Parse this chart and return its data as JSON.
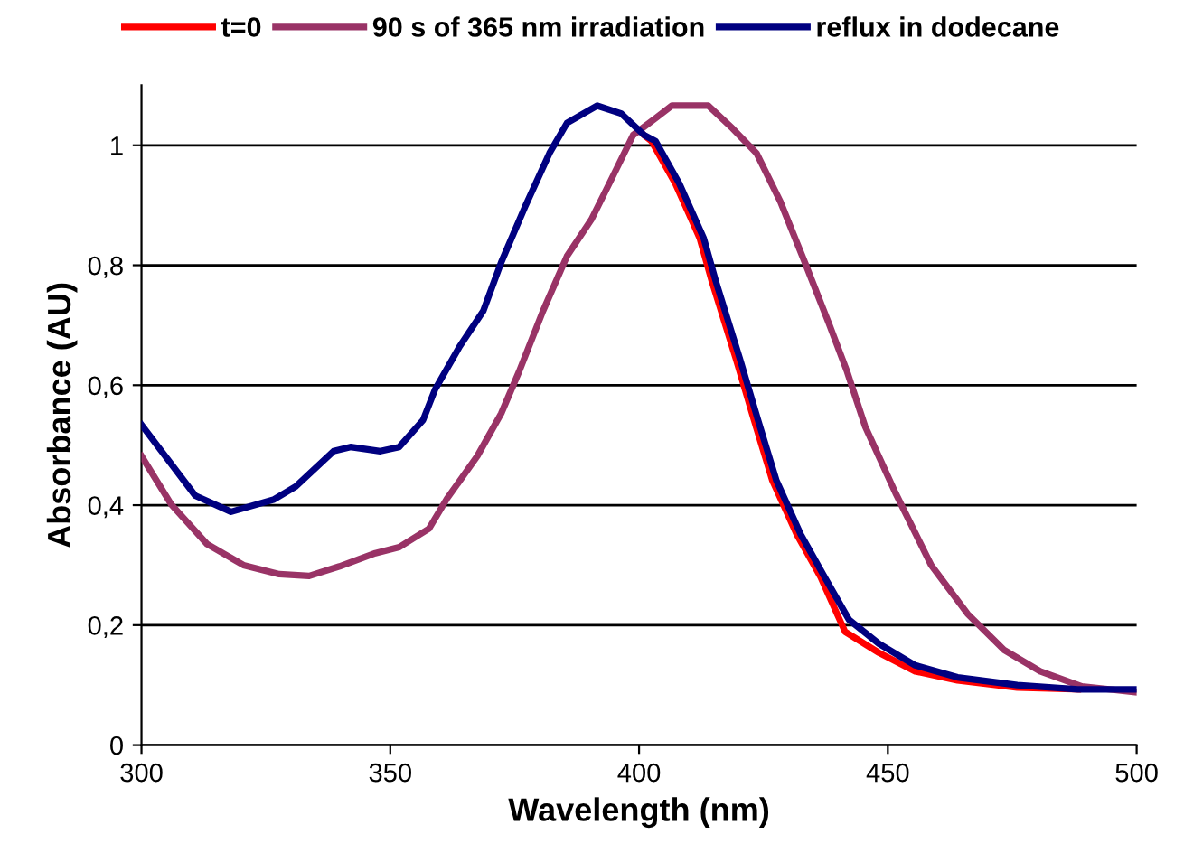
{
  "chart_data": {
    "type": "line",
    "xlabel": "Wavelength (nm)",
    "ylabel": "Absorbance (AU)",
    "xlim": [
      300,
      500
    ],
    "xticks": [
      300,
      350,
      400,
      450,
      500
    ],
    "ylim": [
      0,
      1.1
    ],
    "yticks": [
      0,
      {
        "value": 0.2,
        "label": "0,2"
      },
      {
        "value": 0.4,
        "label": "0,4"
      },
      {
        "value": 0.6,
        "label": "0,6"
      },
      {
        "value": 0.8,
        "label": "0,8"
      },
      1
    ],
    "grid": "y",
    "legend": "top",
    "line_style": "solid",
    "marker": "none",
    "series": [
      {
        "name": "t=0",
        "color": "#ff0000",
        "x": [
          401,
          402.5,
          407.3,
          412.2,
          414.6,
          419.5,
          423.1,
          426.8,
          431.7,
          436.5,
          441.4,
          448.2,
          455.5,
          464,
          476,
          488.2
        ],
        "values": [
          1.017,
          1.007,
          0.936,
          0.845,
          0.774,
          0.643,
          0.542,
          0.441,
          0.351,
          0.28,
          0.189,
          0.154,
          0.123,
          0.108,
          0.096,
          0.093
        ]
      },
      {
        "name": "90 s of 365 nm irradiation",
        "color": "#993366",
        "x": [
          300,
          306,
          313.2,
          320.5,
          327.7,
          333.7,
          339.8,
          347,
          351.8,
          357.8,
          361.4,
          367.5,
          372.3,
          375.9,
          380.7,
          385.5,
          390.4,
          394,
          398.8,
          403.6,
          406.6,
          413.9,
          418.8,
          423.6,
          428.4,
          433.3,
          438.1,
          441.8,
          445.4,
          451.5,
          458.7,
          466,
          473.3,
          480.6,
          489,
          500
        ],
        "values": [
          0.482,
          0.401,
          0.335,
          0.3,
          0.285,
          0.282,
          0.298,
          0.32,
          0.33,
          0.361,
          0.411,
          0.482,
          0.553,
          0.623,
          0.724,
          0.815,
          0.876,
          0.936,
          1.017,
          1.047,
          1.066,
          1.066,
          1.028,
          0.987,
          0.906,
          0.805,
          0.704,
          0.623,
          0.532,
          0.421,
          0.3,
          0.219,
          0.159,
          0.123,
          0.098,
          0.088
        ]
      },
      {
        "name": "reflux in dodecane",
        "color": "#000080",
        "x": [
          300,
          310.8,
          318,
          326.5,
          331,
          338.6,
          342,
          348,
          351.8,
          356.6,
          359,
          363.9,
          368.7,
          372.3,
          377,
          382,
          385.5,
          391.6,
          396.4,
          401,
          403.3,
          408.1,
          413,
          415.4,
          420.3,
          423.9,
          427.6,
          432.5,
          437.3,
          442.2,
          448.2,
          455.5,
          464,
          476,
          488.2,
          500
        ],
        "values": [
          0.534,
          0.416,
          0.389,
          0.409,
          0.431,
          0.49,
          0.497,
          0.49,
          0.497,
          0.542,
          0.593,
          0.664,
          0.724,
          0.805,
          0.896,
          0.987,
          1.037,
          1.066,
          1.053,
          1.017,
          1.007,
          0.936,
          0.845,
          0.774,
          0.643,
          0.542,
          0.441,
          0.351,
          0.28,
          0.209,
          0.169,
          0.133,
          0.113,
          0.1,
          0.093,
          0.093
        ]
      }
    ]
  }
}
